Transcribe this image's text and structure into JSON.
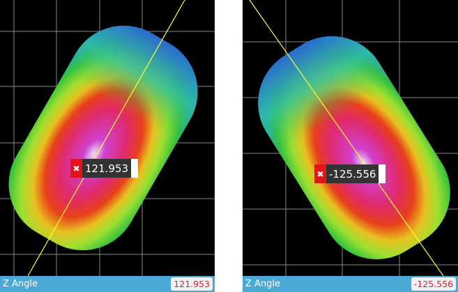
{
  "panels": [
    {
      "measure_label": "Z Angle",
      "value": "121.953",
      "marker_value": "121.953"
    },
    {
      "measure_label": "Z Angle",
      "value": "-125.556",
      "marker_value": "-125.556"
    }
  ],
  "colors": {
    "status_bar": "#4ba9d6",
    "value_text": "#e3202a",
    "marker_close": "#e3141b",
    "angle_line": "#ffff33"
  }
}
